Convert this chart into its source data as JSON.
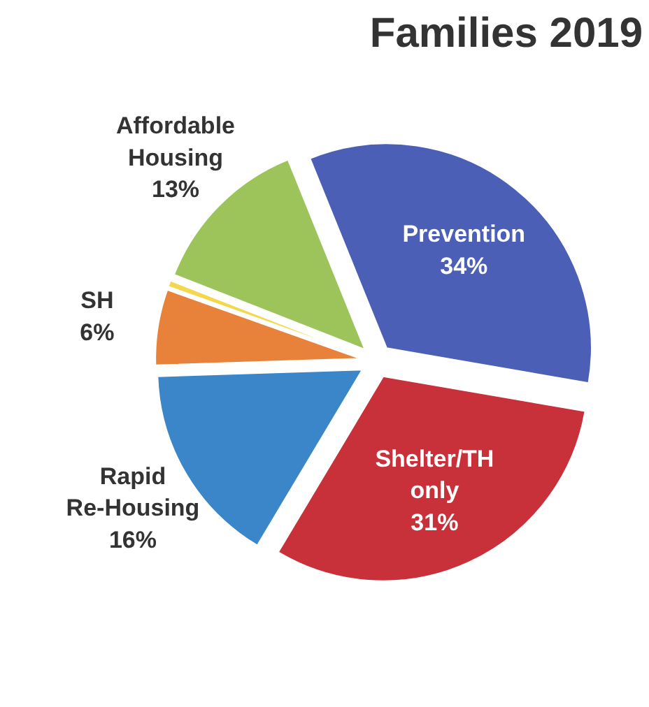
{
  "chart_data": {
    "type": "pie",
    "title": "Families 2019",
    "categories": [
      "Prevention",
      "Shelter/TH only",
      "Rapid Re-Housing",
      "SH",
      null,
      "Affordable Housing"
    ],
    "values": [
      34,
      31,
      16,
      6,
      0.5,
      13
    ],
    "value_labels": [
      "34%",
      "31%",
      "16%",
      "6%",
      null,
      "13%"
    ],
    "colors": [
      "#4a5fb5",
      "#c8303a",
      "#3a86c8",
      "#e8823a",
      "#f2d84a",
      "#9cc45a"
    ]
  }
}
